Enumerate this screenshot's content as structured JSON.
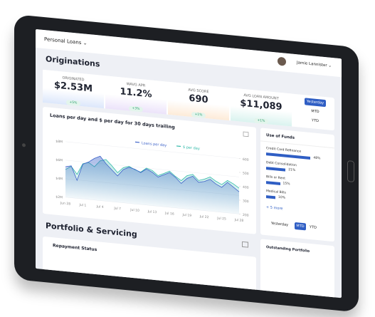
{
  "header": {
    "product": "Personal Loans",
    "user": "Jamie Lannister"
  },
  "originations": {
    "title": "Originations",
    "kpis": [
      {
        "label": "ORIGINATED",
        "value": "$2.53M",
        "delta": "+5%"
      },
      {
        "label": "WAVG APR",
        "value": "11.2%",
        "delta": "+3%"
      },
      {
        "label": "AVG SCORE",
        "value": "690",
        "delta": "+1%"
      },
      {
        "label": "AVG LOAN AMOUNT",
        "value": "$11,089",
        "delta": "+1%"
      }
    ],
    "periods": [
      "Yesterday",
      "MTD",
      "YTD"
    ]
  },
  "chart": {
    "type": "line",
    "title": "Loans per day and $ per day for 30 days trailing",
    "categories": [
      "Jun 28",
      null,
      null,
      "Jul 1",
      null,
      null,
      "Jul 4",
      null,
      null,
      "Jul 7",
      null,
      null,
      "Jul 10",
      null,
      null,
      "Jul 13",
      null,
      null,
      "Jul 16",
      null,
      null,
      "Jul 19",
      null,
      null,
      "Jul 22",
      null,
      null,
      "Jul 25",
      null,
      null,
      "Jul 28"
    ],
    "series": [
      {
        "name": "Loans per day",
        "color": "#3d63c9",
        "axis": "y2",
        "values": [
          420,
          430,
          330,
          450,
          470,
          500,
          520,
          470,
          430,
          390,
          440,
          460,
          450,
          430,
          460,
          440,
          410,
          430,
          450,
          420,
          380,
          420,
          440,
          400,
          410,
          430,
          400,
          380,
          420,
          390,
          360
        ]
      },
      {
        "name": "$ per day",
        "color": "#2fb8a8",
        "values": [
          5.0,
          5.4,
          4.6,
          5.8,
          6.0,
          5.6,
          6.3,
          6.5,
          5.9,
          5.2,
          5.8,
          6.0,
          5.7,
          5.5,
          6.0,
          5.8,
          5.3,
          5.6,
          5.9,
          5.4,
          5.0,
          5.6,
          5.8,
          5.2,
          5.4,
          5.7,
          5.3,
          5.0,
          5.5,
          5.2,
          4.8
        ]
      }
    ],
    "ylim": [
      2,
      8
    ],
    "yticks": [
      {
        "value": 2,
        "label": "$2M"
      },
      {
        "value": 4,
        "label": "$4M"
      },
      {
        "value": 6,
        "label": "$6M"
      },
      {
        "value": 8,
        "label": "$8M"
      }
    ],
    "y2lim": [
      200,
      600
    ],
    "y2ticks": [
      200,
      300,
      400,
      500,
      600
    ]
  },
  "use_of_funds": {
    "title": "Use of Funds",
    "items": [
      {
        "name": "Credit Card Refinance",
        "value": 48,
        "label": "48%"
      },
      {
        "name": "Debt Consolidation",
        "value": 21,
        "label": "21%"
      },
      {
        "name": "Bills or Rent",
        "value": 15,
        "label": "15%"
      },
      {
        "name": "Medical Bills",
        "value": 10,
        "label": "10%"
      }
    ],
    "more": "+ 5 more",
    "periods": [
      "Yesterday",
      "MTD",
      "YTD"
    ]
  },
  "portfolio": {
    "title": "Portfolio & Servicing",
    "repayment": "Repayment Status",
    "outstanding": "Outstanding Portfolio"
  }
}
